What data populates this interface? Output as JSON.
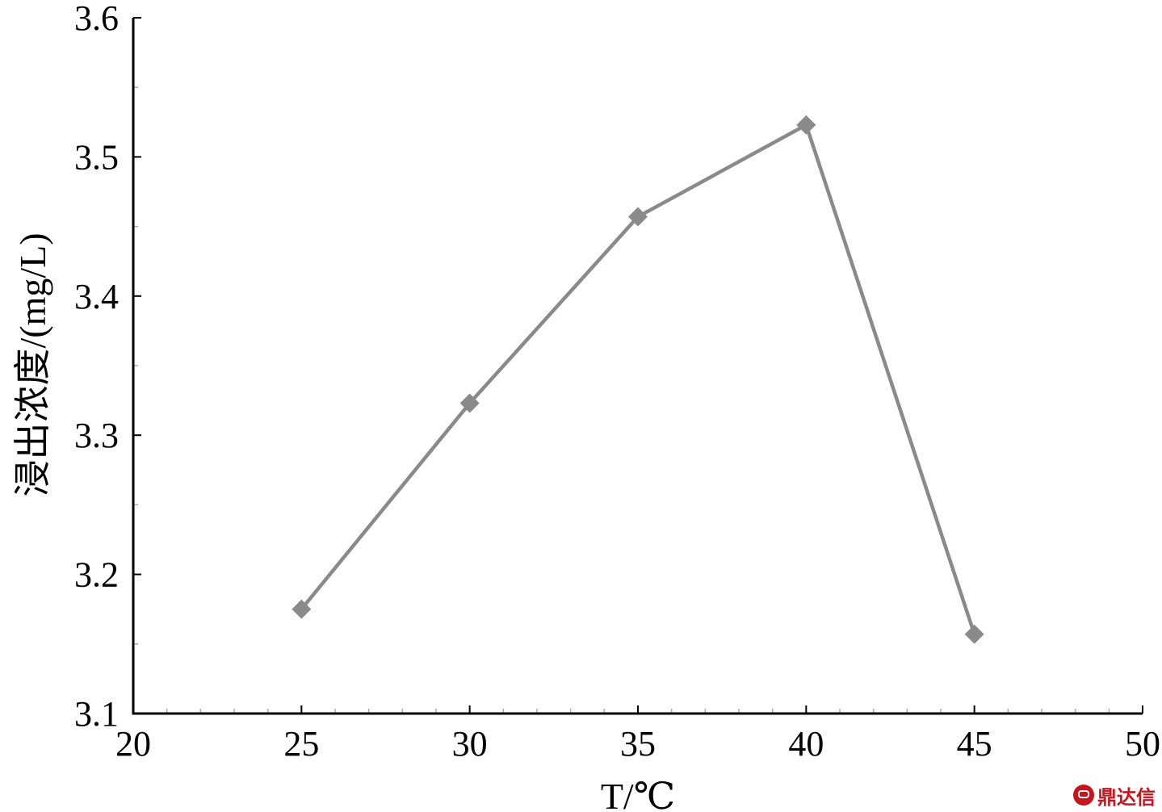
{
  "chart_data": {
    "type": "line",
    "xlabel": "T/℃",
    "ylabel": "浸出浓度/(mg/L)",
    "xlim": [
      20,
      50
    ],
    "ylim": [
      3.1,
      3.6
    ],
    "xticks": [
      "20",
      "25",
      "30",
      "35",
      "40",
      "45",
      "50"
    ],
    "yticks": [
      "3.1",
      "3.2",
      "3.3",
      "3.4",
      "3.5",
      "3.6"
    ],
    "grid": false,
    "series": [
      {
        "x": [
          25,
          30,
          35,
          40,
          45
        ],
        "values": [
          3.175,
          3.323,
          3.457,
          3.523,
          3.157
        ],
        "marker": "diamond",
        "color": "#8a8a8a"
      }
    ]
  },
  "watermark": {
    "text": "鼎达信",
    "color": "#c4161c"
  }
}
